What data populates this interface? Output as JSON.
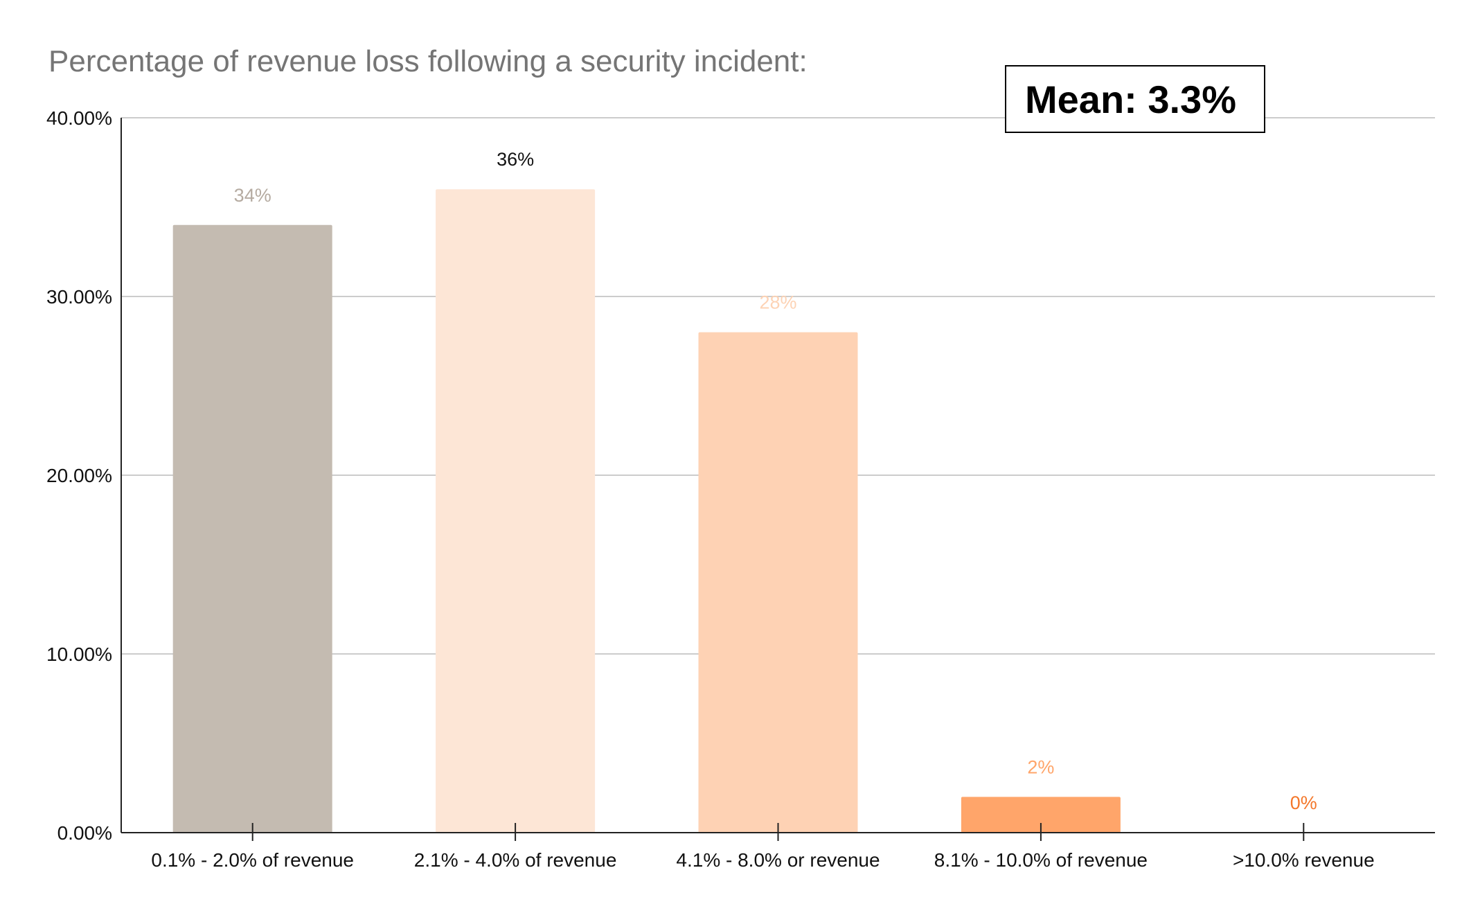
{
  "chart_data": {
    "type": "bar",
    "title": "Percentage of revenue loss following a security incident:",
    "annotation": "Mean: 3.3%",
    "categories": [
      "0.1% - 2.0% of revenue",
      "2.1% - 4.0% of revenue",
      "4.1% - 8.0% or revenue",
      "8.1% - 10.0% of revenue",
      ">10.0% revenue"
    ],
    "values": [
      34,
      36,
      28,
      2,
      0
    ],
    "data_labels": [
      "34%",
      "36%",
      "28%",
      "2%",
      "0%"
    ],
    "bar_colors": [
      "#c4bbb1",
      "#fde6d6",
      "#fed2b4",
      "#ffa56a",
      "#ff8a3d"
    ],
    "label_colors": [
      "#b5aba1",
      "#111111",
      "#fdd3b5",
      "#ffa56a",
      "#f4772a"
    ],
    "y_ticks": [
      "0.00%",
      "10.00%",
      "20.00%",
      "30.00%",
      "40.00%"
    ],
    "ylim": [
      0,
      40
    ],
    "xlabel": "",
    "ylabel": "",
    "grid": true
  }
}
